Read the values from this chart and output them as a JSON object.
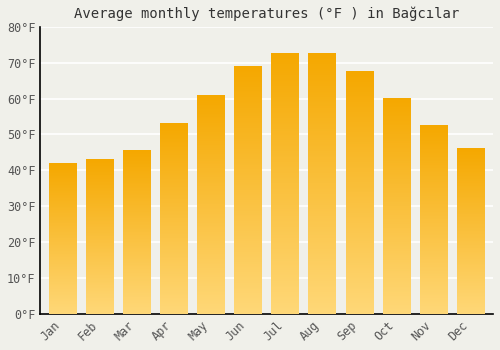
{
  "title": "Average monthly temperatures (°F ) in Bağcılar",
  "months": [
    "Jan",
    "Feb",
    "Mar",
    "Apr",
    "May",
    "Jun",
    "Jul",
    "Aug",
    "Sep",
    "Oct",
    "Nov",
    "Dec"
  ],
  "values": [
    42,
    43,
    45.5,
    53,
    61,
    69,
    72.5,
    72.5,
    67.5,
    60,
    52.5,
    46
  ],
  "bar_color_top": "#F5A800",
  "bar_color_bottom": "#FFD878",
  "bar_edge_color": "#ffffff",
  "background_color": "#f0f0ea",
  "grid_color": "#ffffff",
  "axis_color": "#000000",
  "tick_label_color": "#555555",
  "title_color": "#333333",
  "ylim": [
    0,
    80
  ],
  "yticks": [
    0,
    10,
    20,
    30,
    40,
    50,
    60,
    70,
    80
  ],
  "title_fontsize": 10,
  "tick_fontsize": 8.5,
  "font_family": "monospace",
  "bar_width": 0.75
}
